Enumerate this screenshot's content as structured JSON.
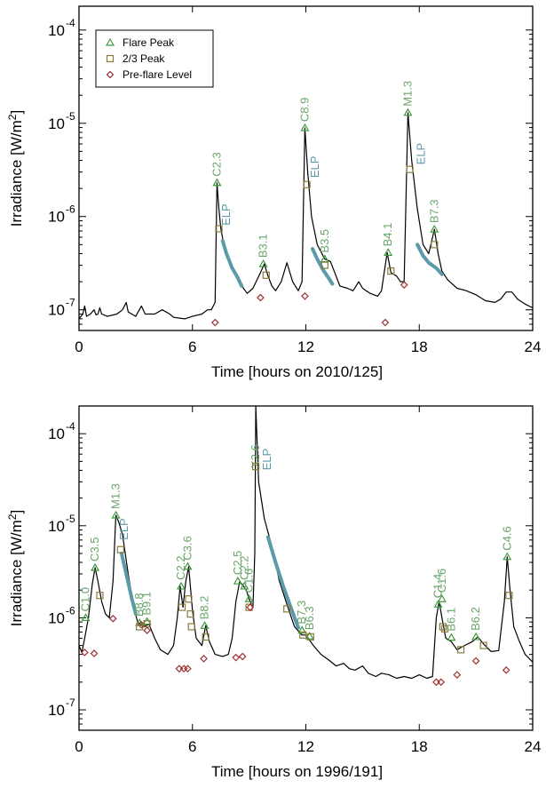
{
  "colors": {
    "peak": "#3f9a3f",
    "two_thirds": "#8a7a3a",
    "preflare": "#a03030",
    "elp": "#5b9aa8",
    "flare_text": "#6aa56a",
    "curve": "#000000"
  },
  "legend": {
    "items": [
      {
        "label": "Flare Peak",
        "marker": "triangle"
      },
      {
        "label": "2/3 Peak",
        "marker": "square"
      },
      {
        "label": "Pre-flare Level",
        "marker": "diamond"
      }
    ]
  },
  "chart_data": [
    {
      "type": "line",
      "xlabel": "Time [hours on 2010/125]",
      "ylabel_text": "Irradiance [W/m",
      "ylabel_sup": "2",
      "ylabel_close": "]",
      "scale": "log",
      "xlim": [
        0,
        24
      ],
      "ylim": [
        6e-08,
        0.00018
      ],
      "x_ticks": [
        0,
        6,
        12,
        18,
        24
      ],
      "y_ticks": [
        {
          "v": 1e-07,
          "exp": "-7"
        },
        {
          "v": 1e-06,
          "exp": "-6"
        },
        {
          "v": 1e-05,
          "exp": "-5"
        },
        {
          "v": 0.0001,
          "exp": "-4"
        }
      ],
      "tick_base": "10",
      "curve": [
        [
          0,
          8e-08
        ],
        [
          0.2,
          9e-08
        ],
        [
          0.3,
          1.1e-07
        ],
        [
          0.4,
          8.5e-08
        ],
        [
          0.6,
          9e-08
        ],
        [
          0.8,
          1e-07
        ],
        [
          0.9,
          8.8e-08
        ],
        [
          1.0,
          9e-08
        ],
        [
          1.1,
          1.05e-07
        ],
        [
          1.2,
          9e-08
        ],
        [
          1.5,
          8.5e-08
        ],
        [
          2.0,
          9e-08
        ],
        [
          2.3,
          1e-07
        ],
        [
          2.5,
          1.2e-07
        ],
        [
          2.6,
          9.5e-08
        ],
        [
          3.0,
          8.5e-08
        ],
        [
          3.3,
          1.1e-07
        ],
        [
          3.5,
          9e-08
        ],
        [
          4.0,
          9e-08
        ],
        [
          4.4,
          1e-07
        ],
        [
          4.8,
          9e-08
        ],
        [
          5.0,
          8.3e-08
        ],
        [
          5.6,
          8e-08
        ],
        [
          6.0,
          8.5e-08
        ],
        [
          6.5,
          9e-08
        ],
        [
          6.8,
          1e-07
        ],
        [
          7.0,
          1e-07
        ],
        [
          7.2,
          1.2e-07
        ],
        [
          7.3,
          2.3e-06
        ],
        [
          7.4,
          1.2e-06
        ],
        [
          7.5,
          7.5e-07
        ],
        [
          7.7,
          4.5e-07
        ],
        [
          8.0,
          3e-07
        ],
        [
          8.5,
          2.1e-07
        ],
        [
          8.7,
          1.7e-07
        ],
        [
          8.9,
          1.5e-07
        ],
        [
          9.2,
          1.7e-07
        ],
        [
          9.6,
          2.5e-07
        ],
        [
          9.8,
          3.1e-07
        ],
        [
          10.0,
          2.3e-07
        ],
        [
          10.2,
          1.8e-07
        ],
        [
          10.4,
          1.6e-07
        ],
        [
          10.7,
          2e-07
        ],
        [
          11.0,
          3.2e-07
        ],
        [
          11.3,
          2e-07
        ],
        [
          11.6,
          1.6e-07
        ],
        [
          11.8,
          2e-07
        ],
        [
          11.95,
          8.9e-06
        ],
        [
          12.1,
          3e-06
        ],
        [
          12.3,
          1e-06
        ],
        [
          12.6,
          5e-07
        ],
        [
          13.0,
          3.5e-07
        ],
        [
          13.3,
          3.3e-07
        ],
        [
          13.5,
          2.6e-07
        ],
        [
          13.8,
          1.8e-07
        ],
        [
          14.2,
          1.7e-07
        ],
        [
          14.5,
          1.6e-07
        ],
        [
          14.8,
          2e-07
        ],
        [
          15.0,
          1.7e-07
        ],
        [
          15.4,
          1.5e-07
        ],
        [
          15.8,
          1.4e-07
        ],
        [
          16.0,
          1.6e-07
        ],
        [
          16.3,
          4.1e-07
        ],
        [
          16.5,
          2.5e-07
        ],
        [
          16.8,
          2.3e-07
        ],
        [
          17.0,
          2e-07
        ],
        [
          17.2,
          2e-07
        ],
        [
          17.4,
          1.3e-05
        ],
        [
          17.6,
          4e-06
        ],
        [
          17.9,
          1.2e-06
        ],
        [
          18.2,
          5e-07
        ],
        [
          18.5,
          4e-07
        ],
        [
          18.8,
          7.3e-07
        ],
        [
          19.0,
          4e-07
        ],
        [
          19.2,
          2.6e-07
        ],
        [
          19.5,
          2.1e-07
        ],
        [
          20.0,
          1.7e-07
        ],
        [
          20.5,
          1.6e-07
        ],
        [
          21.0,
          1.45e-07
        ],
        [
          21.5,
          1.25e-07
        ],
        [
          22.0,
          1.2e-07
        ],
        [
          22.3,
          1.3e-07
        ],
        [
          22.6,
          1.55e-07
        ],
        [
          22.9,
          1.55e-07
        ],
        [
          23.2,
          1.3e-07
        ],
        [
          23.6,
          1.15e-07
        ],
        [
          24.0,
          1.05e-07
        ]
      ],
      "elp_segments": [
        [
          [
            7.6,
            5.5e-07
          ],
          [
            7.8,
            4e-07
          ],
          [
            8.1,
            2.8e-07
          ],
          [
            8.4,
            2.2e-07
          ],
          [
            8.6,
            1.8e-07
          ]
        ],
        [
          [
            12.35,
            4.5e-07
          ],
          [
            12.6,
            3.5e-07
          ],
          [
            12.9,
            2.7e-07
          ],
          [
            13.2,
            2.2e-07
          ],
          [
            13.4,
            1.9e-07
          ]
        ],
        [
          [
            17.9,
            5e-07
          ],
          [
            18.2,
            3.8e-07
          ],
          [
            18.5,
            3.2e-07
          ],
          [
            18.9,
            2.8e-07
          ],
          [
            19.2,
            2.4e-07
          ]
        ]
      ],
      "flares": [
        {
          "label": "C2.3",
          "peak_t": 7.3,
          "peak": 2.3e-06,
          "tt_t": 7.4,
          "tt": 7.4e-07,
          "pre_t": 7.2,
          "pre": 7.3e-08,
          "elp_t": 7.8,
          "elp": 8e-07
        },
        {
          "label": "B3.1",
          "peak_t": 9.75,
          "peak": 3.1e-07,
          "tt_t": 9.9,
          "tt": 2.35e-07,
          "pre_t": 9.6,
          "pre": 1.35e-07
        },
        {
          "label": "C8.9",
          "peak_t": 11.95,
          "peak": 8.9e-06,
          "tt_t": 12.05,
          "tt": 2.2e-06,
          "pre_t": 11.95,
          "pre": 1.4e-07,
          "elp_t": 12.5,
          "elp": 2.6e-06
        },
        {
          "label": "B3.5",
          "peak_t": 13.0,
          "peak": 3.5e-07,
          "tt_t": 13.0,
          "tt": 3e-07
        },
        {
          "label": "B4.1",
          "peak_t": 16.35,
          "peak": 4.1e-07,
          "tt_t": 16.5,
          "tt": 2.6e-07,
          "pre_t": 16.2,
          "pre": 7.3e-08
        },
        {
          "label": "M1.3",
          "peak_t": 17.4,
          "peak": 1.3e-05,
          "tt_t": 17.5,
          "tt": 3.2e-06,
          "pre_t": 17.2,
          "pre": 1.85e-07,
          "elp_t": 18.1,
          "elp": 3.6e-06
        },
        {
          "label": "B7.3",
          "peak_t": 18.8,
          "peak": 7.3e-07,
          "tt_t": 18.8,
          "tt": 5e-07
        }
      ]
    },
    {
      "type": "line",
      "xlabel": "Time [hours on 1996/191]",
      "ylabel_text": "Irradiance [W/m",
      "ylabel_sup": "2",
      "ylabel_close": "]",
      "scale": "log",
      "xlim": [
        0,
        24
      ],
      "ylim": [
        6e-08,
        0.0002
      ],
      "x_ticks": [
        0,
        6,
        12,
        18,
        24
      ],
      "y_ticks": [
        {
          "v": 1e-07,
          "exp": "-7"
        },
        {
          "v": 1e-06,
          "exp": "-6"
        },
        {
          "v": 1e-05,
          "exp": "-5"
        },
        {
          "v": 0.0001,
          "exp": "-4"
        }
      ],
      "tick_base": "10",
      "curve": [
        [
          0,
          5e-07
        ],
        [
          0.15,
          4.2e-07
        ],
        [
          0.3,
          6e-07
        ],
        [
          0.5,
          1e-06
        ],
        [
          0.7,
          2.3e-06
        ],
        [
          0.85,
          3.5e-06
        ],
        [
          1.0,
          2.5e-06
        ],
        [
          1.2,
          1.5e-06
        ],
        [
          1.4,
          1.1e-06
        ],
        [
          1.6,
          1e-06
        ],
        [
          1.8,
          2.5e-06
        ],
        [
          1.95,
          1.3e-05
        ],
        [
          2.1,
          1.1e-05
        ],
        [
          2.3,
          8e-06
        ],
        [
          2.6,
          3e-06
        ],
        [
          2.9,
          1.3e-06
        ],
        [
          3.1,
          9e-07
        ],
        [
          3.4,
          8e-07
        ],
        [
          3.7,
          8.5e-07
        ],
        [
          4.0,
          6e-07
        ],
        [
          4.3,
          4.5e-07
        ],
        [
          4.7,
          4e-07
        ],
        [
          5.0,
          5e-07
        ],
        [
          5.2,
          1e-06
        ],
        [
          5.35,
          2.2e-06
        ],
        [
          5.5,
          1.3e-06
        ],
        [
          5.65,
          2.5e-06
        ],
        [
          5.8,
          3.6e-06
        ],
        [
          6.0,
          1.2e-06
        ],
        [
          6.2,
          6e-07
        ],
        [
          6.5,
          5e-07
        ],
        [
          6.7,
          8.2e-07
        ],
        [
          6.9,
          5.5e-07
        ],
        [
          7.2,
          4e-07
        ],
        [
          7.6,
          3.8e-07
        ],
        [
          7.9,
          4e-07
        ],
        [
          8.1,
          6e-07
        ],
        [
          8.3,
          1.5e-06
        ],
        [
          8.5,
          2.5e-06
        ],
        [
          8.7,
          2.2e-06
        ],
        [
          8.85,
          2e-06
        ],
        [
          9.0,
          1.6e-06
        ],
        [
          9.2,
          1.3e-06
        ],
        [
          9.3,
          5e-06
        ],
        [
          9.35,
          0.0002
        ],
        [
          9.5,
          3e-05
        ],
        [
          9.8,
          1.2e-05
        ],
        [
          10.2,
          6e-06
        ],
        [
          10.6,
          2.5e-06
        ],
        [
          11.0,
          1.4e-06
        ],
        [
          11.4,
          8e-07
        ],
        [
          11.8,
          6.5e-07
        ],
        [
          12.0,
          6.5e-07
        ],
        [
          12.4,
          5e-07
        ],
        [
          12.8,
          4e-07
        ],
        [
          13.2,
          3.5e-07
        ],
        [
          13.6,
          3e-07
        ],
        [
          14.0,
          3.2e-07
        ],
        [
          14.3,
          2.8e-07
        ],
        [
          14.6,
          2.7e-07
        ],
        [
          15.0,
          3e-07
        ],
        [
          15.3,
          2.5e-07
        ],
        [
          15.7,
          2.3e-07
        ],
        [
          16.0,
          2.5e-07
        ],
        [
          16.4,
          2.4e-07
        ],
        [
          16.8,
          2.2e-07
        ],
        [
          17.2,
          2.3e-07
        ],
        [
          17.6,
          2.2e-07
        ],
        [
          18.0,
          2.4e-07
        ],
        [
          18.4,
          2.2e-07
        ],
        [
          18.7,
          2.3e-07
        ],
        [
          18.9,
          1e-06
        ],
        [
          19.05,
          1.5e-06
        ],
        [
          19.2,
          1e-06
        ],
        [
          19.4,
          6e-07
        ],
        [
          19.7,
          5.5e-07
        ],
        [
          20.0,
          4.5e-07
        ],
        [
          20.4,
          5e-07
        ],
        [
          20.8,
          5.5e-07
        ],
        [
          21.1,
          6.2e-07
        ],
        [
          21.4,
          5.2e-07
        ],
        [
          21.8,
          4.3e-07
        ],
        [
          22.2,
          4.4e-07
        ],
        [
          22.5,
          1.5e-06
        ],
        [
          22.65,
          4.6e-06
        ],
        [
          22.8,
          2e-06
        ],
        [
          23.0,
          8e-07
        ],
        [
          23.3,
          5.5e-07
        ],
        [
          23.6,
          4e-07
        ],
        [
          24.0,
          3.3e-07
        ]
      ],
      "elp_segments": [
        [
          [
            2.25,
            5e-06
          ],
          [
            2.5,
            3e-06
          ],
          [
            2.8,
            1.6e-06
          ],
          [
            3.0,
            1.1e-06
          ]
        ],
        [
          [
            10.0,
            7.5e-06
          ],
          [
            10.4,
            4e-06
          ],
          [
            10.8,
            2.2e-06
          ],
          [
            11.2,
            1.3e-06
          ],
          [
            11.6,
            7.8e-07
          ]
        ]
      ],
      "flares": [
        {
          "label": "C1.0",
          "peak_t": 0.35,
          "peak": 1e-06,
          "pre_t": 0.3,
          "pre": 4.2e-07
        },
        {
          "label": "C3.5",
          "peak_t": 0.85,
          "peak": 3.5e-06,
          "tt_t": 1.1,
          "tt": 1.75e-06,
          "pre_t": 0.8,
          "pre": 4.1e-07
        },
        {
          "label": "M1.3",
          "peak_t": 1.95,
          "peak": 1.3e-05,
          "tt_t": 2.2,
          "tt": 5.5e-06,
          "pre_t": 1.8,
          "pre": 9.8e-07,
          "elp_t": 2.4,
          "elp": 7e-06
        },
        {
          "label": "B8.8",
          "peak_t": 3.2,
          "peak": 8.8e-07,
          "tt_t": 3.2,
          "tt": 8e-07,
          "pre_t": 3.3,
          "pre": 8.4e-07
        },
        {
          "label": "B9.1",
          "peak_t": 3.6,
          "peak": 9.1e-07,
          "tt_t": 3.6,
          "tt": 8.6e-07,
          "pre_t": 3.6,
          "pre": 7.3e-07
        },
        {
          "label": "C2.2",
          "peak_t": 5.4,
          "peak": 2.2e-06,
          "tt_t": 5.45,
          "tt": 1.3e-06,
          "pre_t": 5.3,
          "pre": 2.8e-07
        },
        {
          "label": "C3.6",
          "peak_t": 5.75,
          "peak": 3.6e-06,
          "tt_t": 5.8,
          "tt": 1.6e-06,
          "pre_t": 5.55,
          "pre": 2.8e-07
        },
        {
          "label": "",
          "tt_t": 5.9,
          "tt": 1.1e-06,
          "pre_t": 5.75,
          "pre": 2.8e-07
        },
        {
          "label": "",
          "tt_t": 5.95,
          "tt": 8e-07
        },
        {
          "label": "B8.2",
          "peak_t": 6.65,
          "peak": 8.2e-07,
          "tt_t": 6.7,
          "tt": 6.2e-07,
          "pre_t": 6.6,
          "pre": 3.6e-07
        },
        {
          "label": "C2.5",
          "peak_t": 8.4,
          "peak": 2.5e-06,
          "pre_t": 8.3,
          "pre": 3.7e-07
        },
        {
          "label": "C2.2",
          "peak_t": 8.75,
          "peak": 2.2e-06,
          "pre_t": 8.65,
          "pre": 3.8e-07
        },
        {
          "label": "C1.6",
          "peak_t": 9.0,
          "peak": 1.6e-06,
          "tt_t": 9.0,
          "tt": 1.3e-06,
          "pre_t": 9.05,
          "pre": 1.3e-06
        },
        {
          "label": "X2.6",
          "peak_t": 9.35,
          "peak": 0.00026,
          "tt_t": 9.35,
          "tt": 4.4e-05,
          "elp_t": 9.95,
          "elp": 4e-05
        },
        {
          "label": "",
          "tt_t": 11.0,
          "tt": 1.25e-06
        },
        {
          "label": "B7.3",
          "peak_t": 11.8,
          "peak": 7.3e-07,
          "tt_t": 11.85,
          "tt": 6.5e-07
        },
        {
          "label": "B6.3",
          "peak_t": 12.2,
          "peak": 6.3e-07,
          "tt_t": 12.25,
          "tt": 6.2e-07
        },
        {
          "label": "C1.4",
          "peak_t": 19.0,
          "peak": 1.4e-06,
          "pre_t": 18.9,
          "pre": 2e-07
        },
        {
          "label": "C1.6",
          "peak_t": 19.2,
          "peak": 1.6e-06,
          "tt_t": 19.25,
          "tt": 8e-07,
          "pre_t": 19.15,
          "pre": 2e-07
        },
        {
          "label": "",
          "tt_t": 19.35,
          "tt": 7.6e-07
        },
        {
          "label": "B6.1",
          "peak_t": 19.7,
          "peak": 6.1e-07,
          "tt_t": 20.2,
          "tt": 4.5e-07,
          "pre_t": 20.0,
          "pre": 2.4e-07
        },
        {
          "label": "B6.2",
          "peak_t": 21.0,
          "peak": 6.2e-07,
          "tt_t": 21.4,
          "tt": 5e-07,
          "pre_t": 21.0,
          "pre": 3.4e-07
        },
        {
          "label": "C4.6",
          "peak_t": 22.65,
          "peak": 4.6e-06,
          "tt_t": 22.75,
          "tt": 1.75e-06,
          "pre_t": 22.6,
          "pre": 2.7e-07
        }
      ],
      "elp_label_t": 9.95
    }
  ],
  "elp_text": "ELP"
}
